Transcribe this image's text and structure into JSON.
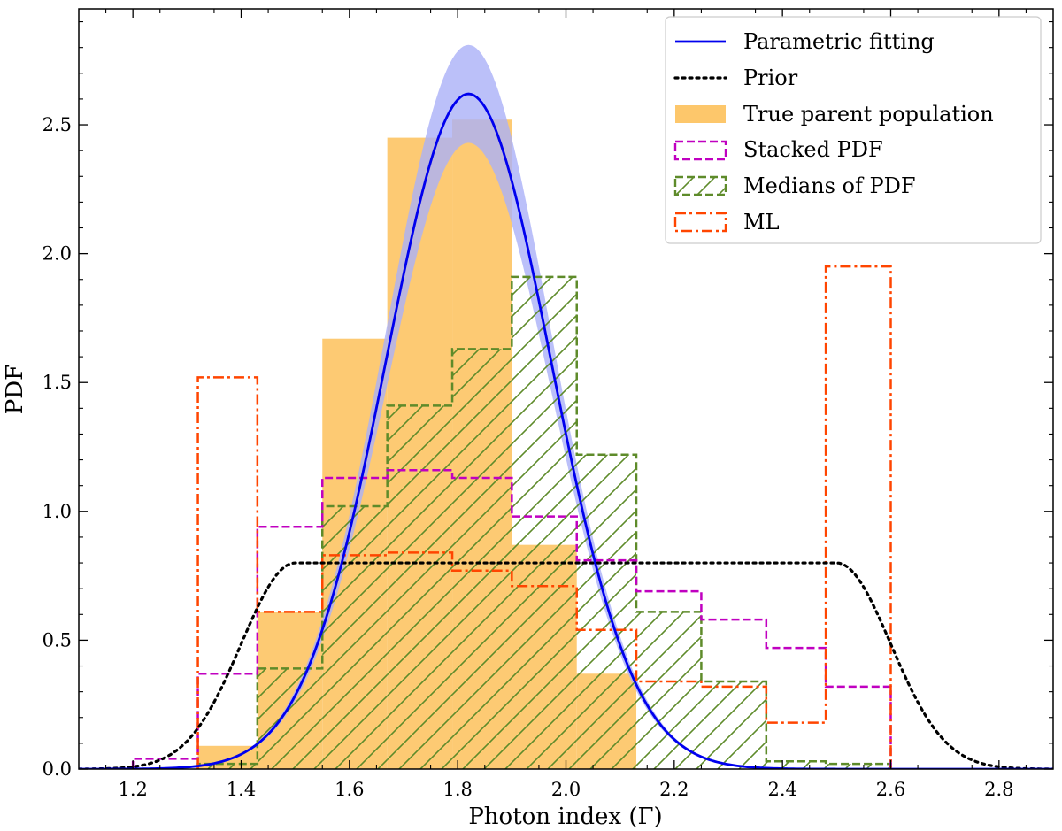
{
  "chart_data": {
    "type": "histogram+line",
    "xlabel": "Photon index (Γ)",
    "ylabel": "PDF",
    "xlim": [
      1.1,
      2.9
    ],
    "ylim": [
      0,
      2.95
    ],
    "xticks": [
      1.2,
      1.4,
      1.6,
      1.8,
      2.0,
      2.2,
      2.4,
      2.6,
      2.8
    ],
    "xtick_labels": [
      "1.2",
      "1.4",
      "1.6",
      "1.8",
      "2.0",
      "2.2",
      "2.4",
      "2.6",
      "2.8"
    ],
    "yticks": [
      0.0,
      0.5,
      1.0,
      1.5,
      2.0,
      2.5
    ],
    "ytick_labels": [
      "0.0",
      "0.5",
      "1.0",
      "1.5",
      "2.0",
      "2.5"
    ],
    "legend_position": "top-right",
    "colors": {
      "fit_line": "#0000ee",
      "fit_band": "#aab0f8",
      "prior": "#000000",
      "true_parent": "#fdc76b",
      "stacked": "#c000c0",
      "medians": "#5e8b2a",
      "ml": "#ff4500"
    },
    "legend": [
      {
        "key": "fit",
        "label": "Parametric fitting"
      },
      {
        "key": "prior",
        "label": "Prior"
      },
      {
        "key": "true",
        "label": "True parent population"
      },
      {
        "key": "stacked",
        "label": "Stacked PDF"
      },
      {
        "key": "medians",
        "label": "Medians of PDF"
      },
      {
        "key": "ml",
        "label": "ML"
      }
    ],
    "true_parent_population": {
      "bin_edges": [
        1.32,
        1.43,
        1.55,
        1.67,
        1.79,
        1.9,
        2.02,
        2.13
      ],
      "values": [
        0.09,
        0.61,
        1.67,
        2.45,
        2.52,
        0.87,
        0.37
      ]
    },
    "stacked_pdf": {
      "bin_edges": [
        1.2,
        1.32,
        1.43,
        1.55,
        1.67,
        1.79,
        1.9,
        2.02,
        2.13,
        2.25,
        2.37,
        2.48,
        2.6
      ],
      "values": [
        0.04,
        0.37,
        0.94,
        1.13,
        1.16,
        1.13,
        0.98,
        0.81,
        0.69,
        0.58,
        0.47,
        0.32
      ]
    },
    "medians_of_pdf": {
      "bin_edges": [
        1.32,
        1.43,
        1.55,
        1.67,
        1.79,
        1.9,
        2.02,
        2.13,
        2.25,
        2.37,
        2.48,
        2.6
      ],
      "values": [
        0.02,
        0.39,
        1.02,
        1.41,
        1.63,
        1.91,
        1.22,
        0.61,
        0.34,
        0.03,
        0.02
      ]
    },
    "ml": {
      "bin_edges": [
        1.32,
        1.43,
        1.55,
        1.67,
        1.79,
        1.9,
        2.02,
        2.13,
        2.25,
        2.37,
        2.48,
        2.6
      ],
      "values": [
        1.52,
        0.61,
        0.83,
        0.84,
        0.77,
        0.71,
        0.54,
        0.34,
        0.32,
        0.18,
        1.95
      ]
    },
    "parametric_fitting": {
      "model": "gaussian",
      "mean": 1.82,
      "sigma": 0.152,
      "band_upper_peak": 2.81,
      "band_lower_peak": 2.43
    },
    "prior": {
      "plateau": 0.8,
      "flat_from": 1.5,
      "flat_to": 2.5,
      "edge_sigma": 0.1
    }
  }
}
